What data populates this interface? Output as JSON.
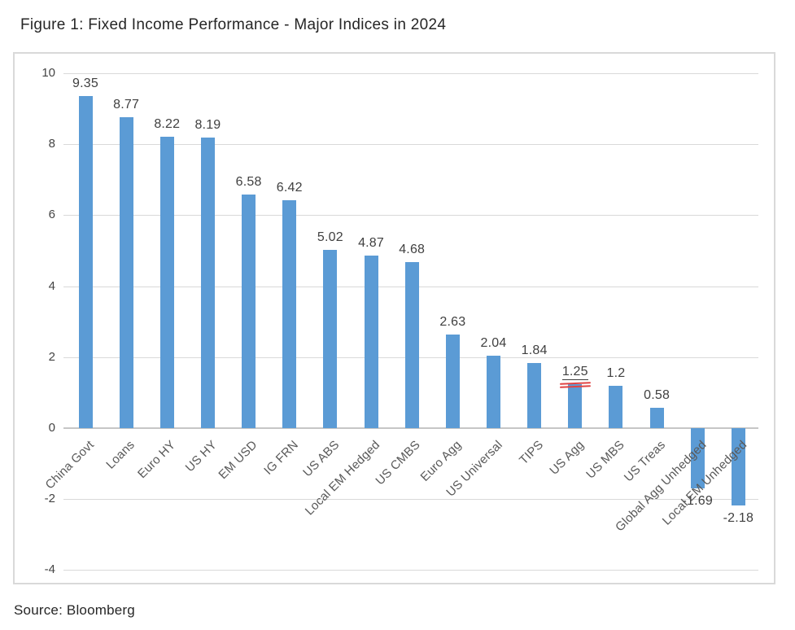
{
  "title": "Figure 1: Fixed Income Performance - Major Indices in 2024",
  "source": "Source: Bloomberg",
  "chart_data": {
    "type": "bar",
    "title": "Figure 1: Fixed Income Performance - Major Indices in 2024",
    "categories": [
      "China Govt",
      "Loans",
      "Euro HY",
      "US HY",
      "EM USD",
      "IG FRN",
      "US ABS",
      "Local EM Hedged",
      "US CMBS",
      "Euro Agg",
      "US Universal",
      "TIPS",
      "US Agg",
      "US MBS",
      "US Treas",
      "Global Agg Unhedged",
      "Local EM Unhedged"
    ],
    "values": [
      9.35,
      8.77,
      8.22,
      8.19,
      6.58,
      6.42,
      5.02,
      4.87,
      4.68,
      2.63,
      2.04,
      1.84,
      1.25,
      1.2,
      0.58,
      -1.69,
      -2.18
    ],
    "xlabel": "",
    "ylabel": "",
    "ylim": [
      -4,
      10
    ],
    "yticks": [
      10,
      8,
      6,
      4,
      2,
      0,
      -2,
      -4
    ],
    "grid": true,
    "legend": "none",
    "value_labels": true,
    "bar_color": "#5B9BD5",
    "annotations": [
      {
        "target_index": 12,
        "type": "red-double-underline",
        "color": "#e04343"
      }
    ]
  }
}
